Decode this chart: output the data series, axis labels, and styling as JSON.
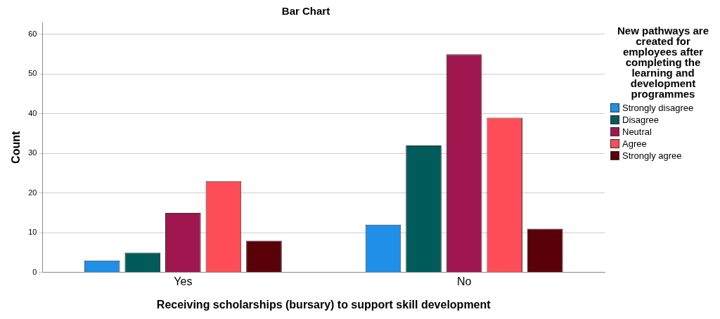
{
  "chart_data": {
    "type": "bar",
    "title": "Bar Chart",
    "xlabel": "Receiving scholarships (bursary) to support skill development",
    "ylabel": "Count",
    "legend_title": "New pathways are created for employees after completing the learning and development programmes",
    "categories": [
      "Yes",
      "No"
    ],
    "series": [
      {
        "name": "Strongly disagree",
        "color": "#1f8fe8",
        "values": [
          3,
          12
        ]
      },
      {
        "name": "Disagree",
        "color": "#005b5b",
        "values": [
          5,
          32
        ]
      },
      {
        "name": "Neutral",
        "color": "#a0174f",
        "values": [
          15,
          55
        ]
      },
      {
        "name": "Agree",
        "color": "#ff4d57",
        "values": [
          23,
          39
        ]
      },
      {
        "name": "Strongly agree",
        "color": "#5a0008",
        "values": [
          8,
          11
        ]
      }
    ],
    "ylim": [
      0,
      63
    ],
    "yticks": [
      0,
      10,
      20,
      30,
      40,
      50,
      60
    ],
    "grid": "y",
    "legend": "right"
  }
}
